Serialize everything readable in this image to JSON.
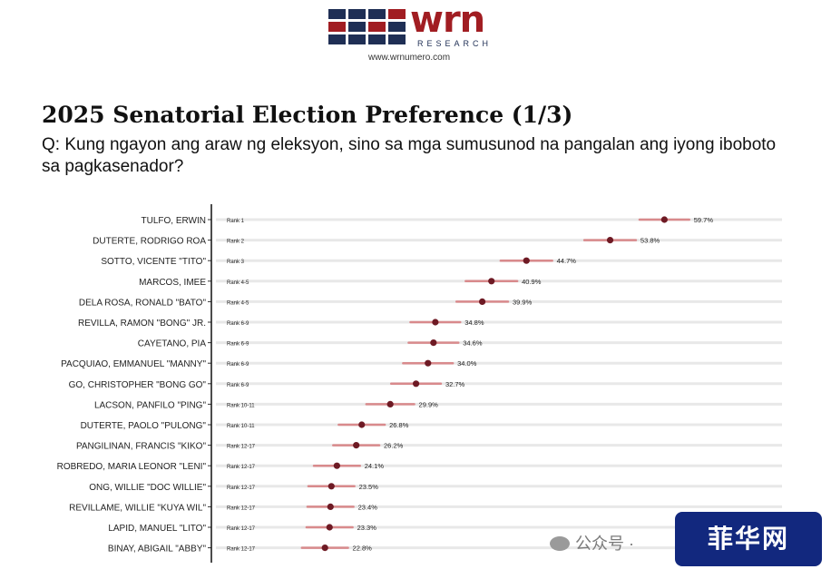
{
  "header": {
    "logo_word": "wrn",
    "logo_sub": "RESEARCH",
    "url": "www.wrnumero.com",
    "logo_colors": [
      "#a11d22",
      "#1f2f55"
    ]
  },
  "title": "2025 Senatorial Election Preference (1/3)",
  "question": "Q: Kung ngayon ang araw ng eleksyon, sino sa mga sumusunod na pangalan ang iyong iboboto sa pagkasenador?",
  "watermark": {
    "text": "公众号 ·",
    "icon": "wechat-icon",
    "badge": "菲华网"
  },
  "colors": {
    "point": "#6e1a24",
    "interval": "#d98a8c",
    "grid": "#e8e8e8",
    "axis": "#111111"
  },
  "chart_data": {
    "type": "scatter",
    "orientation": "horizontal",
    "error_bars": true,
    "grid": true,
    "title": "",
    "xlabel": "",
    "ylabel": "",
    "xlim": [
      0,
      70
    ],
    "rows": [
      {
        "name": "TULFO, ERWIN",
        "rank": "Rank 1",
        "value": 59.7,
        "label": "59.7%",
        "low": 57.0,
        "high": 62.4
      },
      {
        "name": "DUTERTE, RODRIGO ROA",
        "rank": "Rank 2",
        "value": 53.8,
        "label": "53.8%",
        "low": 51.0,
        "high": 56.6
      },
      {
        "name": "SOTTO, VICENTE \"TITO\"",
        "rank": "Rank 3",
        "value": 44.7,
        "label": "44.7%",
        "low": 41.9,
        "high": 47.5
      },
      {
        "name": "MARCOS, IMEE",
        "rank": "Rank 4-5",
        "value": 40.9,
        "label": "40.9%",
        "low": 38.1,
        "high": 43.7
      },
      {
        "name": "DELA ROSA, RONALD \"BATO\"",
        "rank": "Rank 4-5",
        "value": 39.9,
        "label": "39.9%",
        "low": 37.1,
        "high": 42.7
      },
      {
        "name": "REVILLA, RAMON \"BONG\" JR.",
        "rank": "Rank 6-9",
        "value": 34.8,
        "label": "34.8%",
        "low": 32.1,
        "high": 37.5
      },
      {
        "name": "CAYETANO, PIA",
        "rank": "Rank 6-9",
        "value": 34.6,
        "label": "34.6%",
        "low": 31.9,
        "high": 37.3
      },
      {
        "name": "PACQUIAO, EMMANUEL \"MANNY\"",
        "rank": "Rank 6-9",
        "value": 34.0,
        "label": "34.0%",
        "low": 31.3,
        "high": 36.7
      },
      {
        "name": "GO, CHRISTOPHER \"BONG GO\"",
        "rank": "Rank 6-9",
        "value": 32.7,
        "label": "32.7%",
        "low": 30.0,
        "high": 35.4
      },
      {
        "name": "LACSON, PANFILO \"PING\"",
        "rank": "Rank 10-11",
        "value": 29.9,
        "label": "29.9%",
        "low": 27.3,
        "high": 32.5
      },
      {
        "name": "DUTERTE, PAOLO \"PULONG\"",
        "rank": "Rank 10-11",
        "value": 26.8,
        "label": "26.8%",
        "low": 24.3,
        "high": 29.3
      },
      {
        "name": "PANGILINAN, FRANCIS \"KIKO\"",
        "rank": "Rank 12-17",
        "value": 26.2,
        "label": "26.2%",
        "low": 23.7,
        "high": 28.7
      },
      {
        "name": "ROBREDO, MARIA LEONOR \"LENI\"",
        "rank": "Rank 12-17",
        "value": 24.1,
        "label": "24.1%",
        "low": 21.6,
        "high": 26.6
      },
      {
        "name": "ONG, WILLIE \"DOC WILLIE\"",
        "rank": "Rank 12-17",
        "value": 23.5,
        "label": "23.5%",
        "low": 21.0,
        "high": 26.0
      },
      {
        "name": "REVILLAME, WILLIE \"KUYA WIL\"",
        "rank": "Rank 12-17",
        "value": 23.4,
        "label": "23.4%",
        "low": 20.9,
        "high": 25.9
      },
      {
        "name": "LAPID, MANUEL \"LITO\"",
        "rank": "Rank 12-17",
        "value": 23.3,
        "label": "23.3%",
        "low": 20.8,
        "high": 25.8
      },
      {
        "name": "BINAY, ABIGAIL \"ABBY\"",
        "rank": "Rank 12-17",
        "value": 22.8,
        "label": "22.8%",
        "low": 20.3,
        "high": 25.3
      }
    ]
  }
}
